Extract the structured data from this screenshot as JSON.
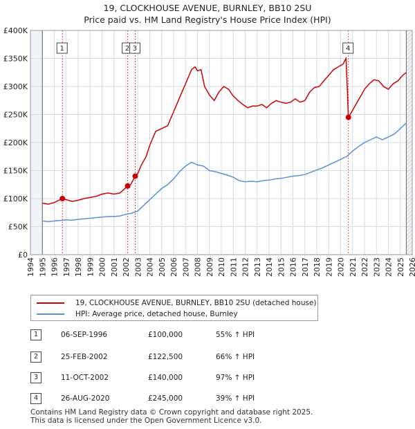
{
  "title": "19, CLOCKHOUSE AVENUE, BURNLEY, BB10 2SU",
  "subtitle": "Price paid vs. HM Land Registry's House Price Index (HPI)",
  "chart_data": {
    "type": "line",
    "x_range": [
      1994,
      2026
    ],
    "y_range": [
      0,
      400000
    ],
    "y_ticks": [
      {
        "value": 0,
        "label": "£0"
      },
      {
        "value": 50000,
        "label": "£50K"
      },
      {
        "value": 100000,
        "label": "£100K"
      },
      {
        "value": 150000,
        "label": "£150K"
      },
      {
        "value": 200000,
        "label": "£200K"
      },
      {
        "value": 250000,
        "label": "£250K"
      },
      {
        "value": 300000,
        "label": "£300K"
      },
      {
        "value": 350000,
        "label": "£350K"
      },
      {
        "value": 400000,
        "label": "£400K"
      }
    ],
    "x_ticks": [
      "1994",
      "1995",
      "1996",
      "1997",
      "1998",
      "1999",
      "2000",
      "2001",
      "2002",
      "2003",
      "2004",
      "2005",
      "2006",
      "2007",
      "2008",
      "2009",
      "2010",
      "2011",
      "2012",
      "2013",
      "2014",
      "2015",
      "2016",
      "2017",
      "2018",
      "2019",
      "2020",
      "2021",
      "2022",
      "2023",
      "2024",
      "2025",
      "2026"
    ],
    "data_start": 1995.0,
    "data_end": 2025.5,
    "series": [
      {
        "name": "19, CLOCKHOUSE AVENUE, BURNLEY, BB10 2SU (detached house)",
        "color": "#cc0000",
        "points": [
          [
            1995.0,
            92000
          ],
          [
            1995.5,
            90000
          ],
          [
            1996.0,
            93000
          ],
          [
            1996.68,
            100000
          ],
          [
            1997.0,
            98000
          ],
          [
            1997.5,
            95000
          ],
          [
            1998.0,
            97000
          ],
          [
            1998.5,
            100000
          ],
          [
            1999.0,
            102000
          ],
          [
            1999.5,
            104000
          ],
          [
            2000.0,
            108000
          ],
          [
            2000.5,
            110000
          ],
          [
            2001.0,
            108000
          ],
          [
            2001.5,
            110000
          ],
          [
            2002.15,
            122500
          ],
          [
            2002.4,
            125000
          ],
          [
            2002.78,
            140000
          ],
          [
            2003.0,
            145000
          ],
          [
            2003.3,
            160000
          ],
          [
            2003.7,
            175000
          ],
          [
            2004.0,
            195000
          ],
          [
            2004.5,
            220000
          ],
          [
            2005.0,
            225000
          ],
          [
            2005.5,
            230000
          ],
          [
            2006.0,
            255000
          ],
          [
            2006.5,
            280000
          ],
          [
            2007.0,
            305000
          ],
          [
            2007.5,
            330000
          ],
          [
            2007.8,
            335000
          ],
          [
            2008.0,
            328000
          ],
          [
            2008.3,
            330000
          ],
          [
            2008.6,
            300000
          ],
          [
            2009.0,
            285000
          ],
          [
            2009.4,
            275000
          ],
          [
            2009.8,
            290000
          ],
          [
            2010.2,
            300000
          ],
          [
            2010.6,
            295000
          ],
          [
            2011.0,
            283000
          ],
          [
            2011.4,
            275000
          ],
          [
            2011.8,
            268000
          ],
          [
            2012.2,
            262000
          ],
          [
            2012.6,
            265000
          ],
          [
            2013.0,
            265000
          ],
          [
            2013.4,
            268000
          ],
          [
            2013.8,
            262000
          ],
          [
            2014.2,
            270000
          ],
          [
            2014.6,
            275000
          ],
          [
            2015.0,
            272000
          ],
          [
            2015.4,
            270000
          ],
          [
            2015.8,
            272000
          ],
          [
            2016.2,
            278000
          ],
          [
            2016.6,
            272000
          ],
          [
            2017.0,
            275000
          ],
          [
            2017.4,
            290000
          ],
          [
            2017.8,
            298000
          ],
          [
            2018.2,
            300000
          ],
          [
            2018.6,
            310000
          ],
          [
            2019.0,
            320000
          ],
          [
            2019.4,
            330000
          ],
          [
            2019.8,
            335000
          ],
          [
            2020.2,
            340000
          ],
          [
            2020.45,
            350000
          ],
          [
            2020.55,
            300000
          ],
          [
            2020.65,
            245000
          ],
          [
            2020.8,
            250000
          ],
          [
            2021.2,
            265000
          ],
          [
            2021.6,
            280000
          ],
          [
            2022.0,
            295000
          ],
          [
            2022.4,
            305000
          ],
          [
            2022.8,
            312000
          ],
          [
            2023.2,
            310000
          ],
          [
            2023.6,
            300000
          ],
          [
            2024.0,
            295000
          ],
          [
            2024.4,
            305000
          ],
          [
            2024.8,
            310000
          ],
          [
            2025.2,
            320000
          ],
          [
            2025.5,
            325000
          ]
        ]
      },
      {
        "name": "HPI: Average price, detached house, Burnley",
        "color": "#5b8fd6",
        "points": [
          [
            1995.0,
            60000
          ],
          [
            1995.5,
            59000
          ],
          [
            1996.0,
            60000
          ],
          [
            1996.5,
            61000
          ],
          [
            1997.0,
            62000
          ],
          [
            1997.5,
            61500
          ],
          [
            1998.0,
            63000
          ],
          [
            1998.5,
            64000
          ],
          [
            1999.0,
            65000
          ],
          [
            1999.5,
            66000
          ],
          [
            2000.0,
            67000
          ],
          [
            2000.5,
            68000
          ],
          [
            2001.0,
            68000
          ],
          [
            2001.5,
            69000
          ],
          [
            2002.0,
            72000
          ],
          [
            2002.5,
            74000
          ],
          [
            2003.0,
            78000
          ],
          [
            2003.5,
            88000
          ],
          [
            2004.0,
            98000
          ],
          [
            2004.5,
            108000
          ],
          [
            2005.0,
            118000
          ],
          [
            2005.5,
            125000
          ],
          [
            2006.0,
            135000
          ],
          [
            2006.5,
            148000
          ],
          [
            2007.0,
            158000
          ],
          [
            2007.5,
            165000
          ],
          [
            2008.0,
            160000
          ],
          [
            2008.5,
            158000
          ],
          [
            2009.0,
            150000
          ],
          [
            2009.5,
            148000
          ],
          [
            2010.0,
            145000
          ],
          [
            2010.5,
            142000
          ],
          [
            2011.0,
            138000
          ],
          [
            2011.5,
            132000
          ],
          [
            2012.0,
            130000
          ],
          [
            2012.5,
            131000
          ],
          [
            2013.0,
            130000
          ],
          [
            2013.5,
            132000
          ],
          [
            2014.0,
            133000
          ],
          [
            2014.5,
            135000
          ],
          [
            2015.0,
            136000
          ],
          [
            2015.5,
            138000
          ],
          [
            2016.0,
            140000
          ],
          [
            2016.5,
            141000
          ],
          [
            2017.0,
            143000
          ],
          [
            2017.5,
            147000
          ],
          [
            2018.0,
            151000
          ],
          [
            2018.5,
            155000
          ],
          [
            2019.0,
            160000
          ],
          [
            2019.5,
            165000
          ],
          [
            2020.0,
            170000
          ],
          [
            2020.5,
            175000
          ],
          [
            2021.0,
            185000
          ],
          [
            2021.5,
            193000
          ],
          [
            2022.0,
            200000
          ],
          [
            2022.5,
            205000
          ],
          [
            2023.0,
            210000
          ],
          [
            2023.5,
            205000
          ],
          [
            2024.0,
            210000
          ],
          [
            2024.5,
            215000
          ],
          [
            2025.0,
            225000
          ],
          [
            2025.5,
            235000
          ]
        ]
      }
    ],
    "markers": [
      {
        "label": "1",
        "x": 1996.68,
        "y": 100000
      },
      {
        "label": "2",
        "x": 2002.15,
        "y": 122500
      },
      {
        "label": "3",
        "x": 2002.78,
        "y": 140000
      },
      {
        "label": "4",
        "x": 2020.65,
        "y": 245000
      }
    ]
  },
  "legend": {
    "items": [
      {
        "label": "19, CLOCKHOUSE AVENUE, BURNLEY, BB10 2SU (detached house)",
        "color": "#cc0000"
      },
      {
        "label": "HPI: Average price, detached house, Burnley",
        "color": "#5b8fd6"
      }
    ]
  },
  "transactions": [
    {
      "num": "1",
      "date": "06-SEP-1996",
      "price": "£100,000",
      "hpi": "55% ↑ HPI"
    },
    {
      "num": "2",
      "date": "25-FEB-2002",
      "price": "£122,500",
      "hpi": "66% ↑ HPI"
    },
    {
      "num": "3",
      "date": "11-OCT-2002",
      "price": "£140,000",
      "hpi": "97% ↑ HPI"
    },
    {
      "num": "4",
      "date": "26-AUG-2020",
      "price": "£245,000",
      "hpi": "39% ↑ HPI"
    }
  ],
  "footer": {
    "line1": "Contains HM Land Registry data © Crown copyright and database right 2025.",
    "line2": "This data is licensed under the Open Government Licence v3.0."
  }
}
